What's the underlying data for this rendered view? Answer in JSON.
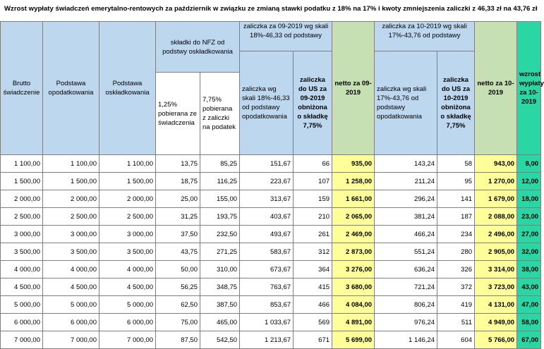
{
  "title": "Wzrost wypłaty świadczeń emerytalno-rentowych za październik w związku ze zmianą  stawki podatku z 18% na 17%  i kwoty zmniejszenia zaliczki z 46,33 zł na 43,76 zł",
  "headers": {
    "brutto": "Brutto świadczenie",
    "podstawa_opod": "Podstawa opodatkowania",
    "podstawa_osk": "Podstawa oskładkowania",
    "skladki_group": "składki do NFZ od podstwy oskładkowania",
    "skladka_125": "1,25% pobierana ze świadczenia",
    "skladka_775": "7,75% pobierana z zaliczki na podatek",
    "group_09": "zaliczka za 09-2019 wg skali 18%-46,33 od podstawy",
    "zal_09": "zaliczka wg skali 18%-46,33 od podstawy opodatkowania",
    "zal_us_09": "zaliczka do US za 09-2019 obniżona o składkę 7,75%",
    "netto_09": "netto za 09-2019",
    "group_10": "zaliczka za 10-2019 wg skali 17%-43,76 od podstawy",
    "zal_10": "zaliczka wg skali 17%-43,76 od podstawy opodatkowania",
    "zal_us_10": "zaliczka do US za 10-2019 obniżona o składkę 7,75%",
    "netto_10": "netto za 10-2019",
    "wzrost": "wzrost wypłaty za 10-2019"
  },
  "rows": [
    {
      "brutto": "1 100,00",
      "pod_opod": "1 100,00",
      "pod_osk": "1 100,00",
      "s125": "13,75",
      "s775": "85,25",
      "zal09": "151,67",
      "us09": "66",
      "netto09": "935,00",
      "zal10": "143,24",
      "us10": "58",
      "netto10": "943,00",
      "wzrost": "8,00"
    },
    {
      "brutto": "1 500,00",
      "pod_opod": "1 500,00",
      "pod_osk": "1 500,00",
      "s125": "18,75",
      "s775": "116,25",
      "zal09": "223,67",
      "us09": "107",
      "netto09": "1 258,00",
      "zal10": "211,24",
      "us10": "95",
      "netto10": "1 270,00",
      "wzrost": "12,00"
    },
    {
      "brutto": "2 000,00",
      "pod_opod": "2 000,00",
      "pod_osk": "2 000,00",
      "s125": "25,00",
      "s775": "155,00",
      "zal09": "313,67",
      "us09": "159",
      "netto09": "1 661,00",
      "zal10": "296,24",
      "us10": "141",
      "netto10": "1 679,00",
      "wzrost": "18,00"
    },
    {
      "brutto": "2 500,00",
      "pod_opod": "2 500,00",
      "pod_osk": "2 500,00",
      "s125": "31,25",
      "s775": "193,75",
      "zal09": "403,67",
      "us09": "210",
      "netto09": "2 065,00",
      "zal10": "381,24",
      "us10": "187",
      "netto10": "2 088,00",
      "wzrost": "23,00"
    },
    {
      "brutto": "3 000,00",
      "pod_opod": "3 000,00",
      "pod_osk": "3 000,00",
      "s125": "37,50",
      "s775": "232,50",
      "zal09": "493,67",
      "us09": "261",
      "netto09": "2 469,00",
      "zal10": "466,24",
      "us10": "234",
      "netto10": "2 496,00",
      "wzrost": "27,00"
    },
    {
      "brutto": "3 500,00",
      "pod_opod": "3 500,00",
      "pod_osk": "3 500,00",
      "s125": "43,75",
      "s775": "271,25",
      "zal09": "583,67",
      "us09": "312",
      "netto09": "2 873,00",
      "zal10": "551,24",
      "us10": "280",
      "netto10": "2 905,00",
      "wzrost": "32,00"
    },
    {
      "brutto": "4 000,00",
      "pod_opod": "4 000,00",
      "pod_osk": "4 000,00",
      "s125": "50,00",
      "s775": "310,00",
      "zal09": "673,67",
      "us09": "364",
      "netto09": "3 276,00",
      "zal10": "636,24",
      "us10": "326",
      "netto10": "3 314,00",
      "wzrost": "38,00"
    },
    {
      "brutto": "4 500,00",
      "pod_opod": "4 500,00",
      "pod_osk": "4 500,00",
      "s125": "56,25",
      "s775": "348,75",
      "zal09": "763,67",
      "us09": "415",
      "netto09": "3 680,00",
      "zal10": "721,24",
      "us10": "372",
      "netto10": "3 723,00",
      "wzrost": "43,00"
    },
    {
      "brutto": "5 000,00",
      "pod_opod": "5 000,00",
      "pod_osk": "5 000,00",
      "s125": "62,50",
      "s775": "387,50",
      "zal09": "853,67",
      "us09": "466",
      "netto09": "4 084,00",
      "zal10": "806,24",
      "us10": "419",
      "netto10": "4 131,00",
      "wzrost": "47,00"
    },
    {
      "brutto": "6 000,00",
      "pod_opod": "6 000,00",
      "pod_osk": "6 000,00",
      "s125": "75,00",
      "s775": "465,00",
      "zal09": "1 033,67",
      "us09": "569",
      "netto09": "4 891,00",
      "zal10": "976,24",
      "us10": "511",
      "netto10": "4 949,00",
      "wzrost": "58,00"
    },
    {
      "brutto": "7 000,00",
      "pod_opod": "7 000,00",
      "pod_osk": "7 000,00",
      "s125": "87,50",
      "s775": "542,50",
      "zal09": "1 213,67",
      "us09": "671",
      "netto09": "5 699,00",
      "zal10": "1 146,24",
      "us10": "604",
      "netto10": "5 766,00",
      "wzrost": "67,00"
    }
  ]
}
